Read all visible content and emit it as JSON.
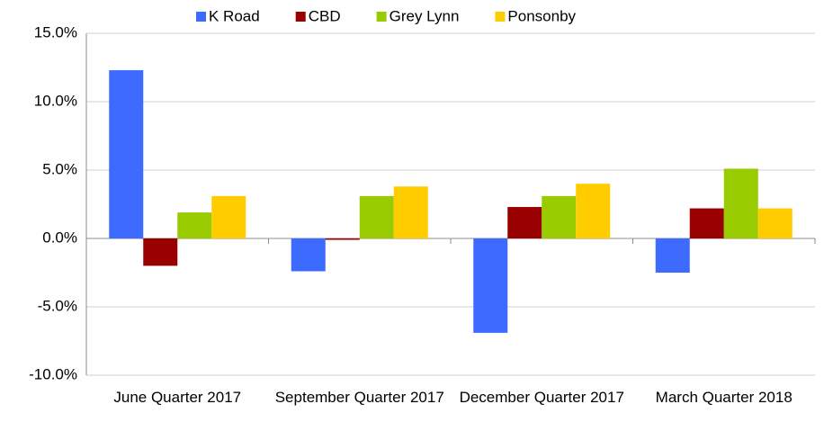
{
  "chart_data": {
    "type": "bar",
    "categories": [
      "June Quarter 2017",
      "September Quarter 2017",
      "December Quarter 2017",
      "March Quarter 2018"
    ],
    "series": [
      {
        "name": "K Road",
        "color": "#3d6bff",
        "values": [
          12.3,
          -2.4,
          -6.9,
          -2.5
        ]
      },
      {
        "name": "CBD",
        "color": "#990000",
        "values": [
          -2.0,
          -0.1,
          2.3,
          2.2
        ]
      },
      {
        "name": "Grey Lynn",
        "color": "#99cc00",
        "values": [
          1.9,
          3.1,
          3.1,
          5.1
        ]
      },
      {
        "name": "Ponsonby",
        "color": "#ffcc00",
        "values": [
          3.1,
          3.8,
          4.0,
          2.2
        ]
      }
    ],
    "ylim": [
      -10,
      15
    ],
    "yticks": [
      {
        "value": -10,
        "label": "-10.0%"
      },
      {
        "value": -5,
        "label": "-5.0%"
      },
      {
        "value": 0,
        "label": "0.0%"
      },
      {
        "value": 5,
        "label": "5.0%"
      },
      {
        "value": 10,
        "label": "10.0%"
      },
      {
        "value": 15,
        "label": "15.0%"
      }
    ],
    "grid": true,
    "legend": "top"
  }
}
